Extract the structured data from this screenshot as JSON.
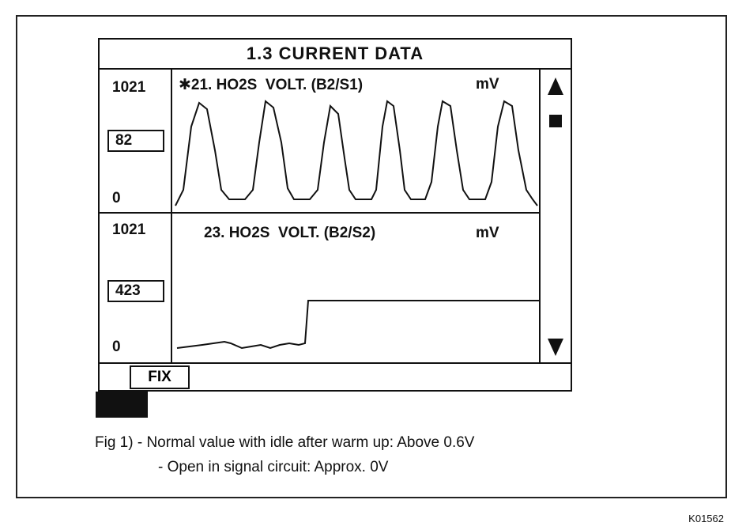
{
  "screen": {
    "title": "1.3  CURRENT  DATA",
    "channels": [
      {
        "scale_max": "1021",
        "scale_min": "0",
        "current_value": "82",
        "title": "✱21. HO2S  VOLT. (B2/S1)",
        "unit": "mV"
      },
      {
        "scale_max": "1021",
        "scale_min": "0",
        "current_value": "423",
        "title": "23. HO2S  VOLT. (B2/S2)",
        "unit": "mV"
      }
    ],
    "scroll": {
      "up_icon": "triangle-up-icon",
      "mark_icon": "square-icon",
      "down_icon": "triangle-down-icon"
    },
    "fix_label": "FIX"
  },
  "caption": {
    "line1": "Fig 1) - Normal value with idle after warm up: Above 0.6V",
    "line2": "- Open in signal circuit: Approx. 0V"
  },
  "ref_code": "K01562"
}
